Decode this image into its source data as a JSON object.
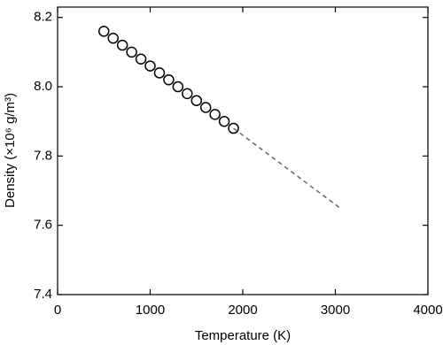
{
  "chart_data": {
    "type": "scatter",
    "x_label": "Temperature (K)",
    "y_label": "Density   (×10⁶ g/m³)",
    "xlim": [
      0,
      4000
    ],
    "xticks": [
      0,
      1000,
      2000,
      3000,
      4000
    ],
    "ylim": [
      7.4,
      8.23
    ],
    "yticks": [
      7.4,
      7.6,
      7.8,
      {
        "value": 8,
        "label": "8.0"
      },
      8.2
    ],
    "series": [
      {
        "style": "markers",
        "marker": "circle",
        "color": "#000000",
        "x": [
          500,
          600,
          700,
          800,
          900,
          1000,
          1100,
          1200,
          1300,
          1400,
          1500,
          1600,
          1700,
          1800,
          1900
        ],
        "values": [
          8.16,
          8.14,
          8.12,
          8.1,
          8.08,
          8.06,
          8.04,
          8.02,
          8.0,
          7.98,
          7.96,
          7.94,
          7.92,
          7.9,
          7.88
        ]
      },
      {
        "style": "dashed",
        "color": "#666666",
        "x": [
          1900,
          3050
        ],
        "values": [
          7.88,
          7.65
        ]
      }
    ]
  }
}
